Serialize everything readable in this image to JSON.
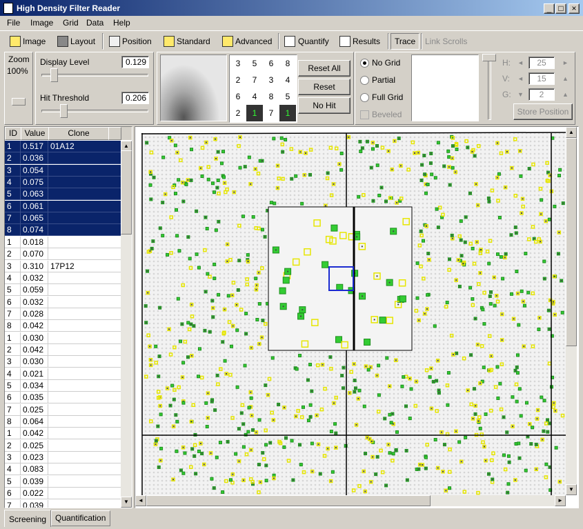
{
  "window": {
    "title": "High Density Filter Reader"
  },
  "menu": [
    "File",
    "Image",
    "Grid",
    "Data",
    "Help"
  ],
  "toolbar": [
    "Image",
    "Layout",
    "Position",
    "Standard",
    "Advanced",
    "Quantify",
    "Results",
    "Trace",
    "Link Scrolls"
  ],
  "zoom": {
    "label": "Zoom",
    "value": "100%"
  },
  "display_level": {
    "label": "Display Level",
    "value": "0.129"
  },
  "hit_threshold": {
    "label": "Hit Threshold",
    "value": "0.206"
  },
  "pattern_grid": [
    [
      "3",
      "5",
      "6",
      "8"
    ],
    [
      "2",
      "7",
      "3",
      "4"
    ],
    [
      "6",
      "4",
      "8",
      "5"
    ],
    [
      "2",
      "1",
      "7",
      "1"
    ]
  ],
  "buttons": [
    "Reset All",
    "Reset",
    "No Hit"
  ],
  "grid_options": [
    "No Grid",
    "Partial",
    "Full Grid",
    "Beveled"
  ],
  "position": [
    {
      "label": "H:",
      "value": "25"
    },
    {
      "label": "V:",
      "value": "15"
    },
    {
      "label": "G:",
      "value": "2"
    }
  ],
  "store_position": "Store Position",
  "table": {
    "columns": [
      "ID",
      "Value",
      "Clone"
    ],
    "rows": [
      [
        "1",
        "0.517",
        "01A12"
      ],
      [
        "2",
        "0.036"
      ],
      [
        "3",
        "0.054"
      ],
      [
        "4",
        "0.075"
      ],
      [
        "5",
        "0.063"
      ],
      [
        "6",
        "0.061"
      ],
      [
        "7",
        "0.065"
      ],
      [
        "8",
        "0.074"
      ],
      [
        "1",
        "0.018"
      ],
      [
        "2",
        "0.070"
      ],
      [
        "3",
        "0.310",
        "17P12"
      ],
      [
        "4",
        "0.032"
      ],
      [
        "5",
        "0.059"
      ],
      [
        "6",
        "0.032"
      ],
      [
        "7",
        "0.028"
      ],
      [
        "8",
        "0.042"
      ],
      [
        "1",
        "0.030"
      ],
      [
        "2",
        "0.042"
      ],
      [
        "3",
        "0.030"
      ],
      [
        "4",
        "0.021"
      ],
      [
        "5",
        "0.034"
      ],
      [
        "6",
        "0.035"
      ],
      [
        "7",
        "0.025"
      ],
      [
        "8",
        "0.064"
      ],
      [
        "1",
        "0.042"
      ],
      [
        "2",
        "0.025"
      ],
      [
        "3",
        "0.023"
      ],
      [
        "4",
        "0.083"
      ],
      [
        "5",
        "0.039"
      ],
      [
        "6",
        "0.022"
      ],
      [
        "7",
        "0.039"
      ]
    ]
  },
  "tabs": [
    "Screening",
    "Quantification"
  ]
}
